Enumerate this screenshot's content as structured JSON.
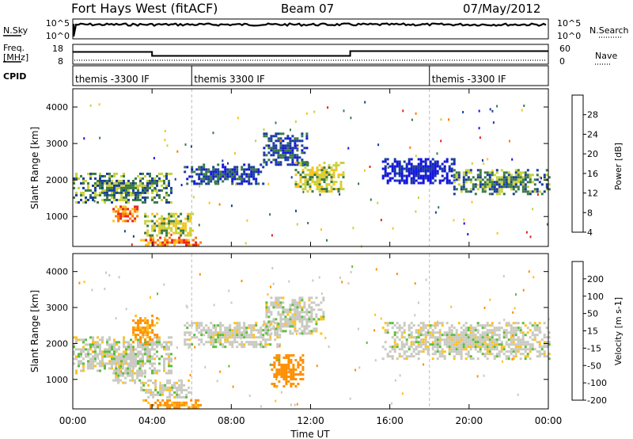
{
  "header": {
    "station": "Fort Hays West (fitACF)",
    "beam": "Beam 07",
    "date": "07/May/2012"
  },
  "noise_panel": {
    "left_label": "N.Sky",
    "right_label": "N.Search",
    "left_ticks": [
      "10^5",
      "10^0"
    ],
    "right_ticks": [
      "10^5",
      "10^0"
    ]
  },
  "freq_panel": {
    "left_label_1": "Freq.",
    "left_label_2": "[MHz]",
    "right_label": "Nave",
    "left_ticks": [
      "18",
      "8"
    ],
    "right_ticks": [
      "60",
      "0"
    ],
    "freq_steps": [
      {
        "t_start": 0.0,
        "t_end": 4.0,
        "mhz": 14.2
      },
      {
        "t_start": 4.0,
        "t_end": 14.0,
        "mhz": 12.2
      },
      {
        "t_start": 14.0,
        "t_end": 24.0,
        "mhz": 14.6
      }
    ],
    "nave_level": 12
  },
  "cpid": {
    "label": "CPID",
    "segments": [
      {
        "name": "themis -3300 IF",
        "t_start": 0.0
      },
      {
        "name": "themis 3300 IF",
        "t_start": 6.0
      },
      {
        "name": "themis -3300 IF",
        "t_start": 18.0
      }
    ]
  },
  "chart_data": [
    {
      "type": "heatmap",
      "quantity": "Power",
      "ylabel": "Slant Range [km]",
      "y_ticks": [
        "1000",
        "2000",
        "3000",
        "4000"
      ],
      "ylim": [
        180,
        4500
      ],
      "xlim": [
        0,
        24
      ],
      "colorbar": {
        "label": "Power [dB]",
        "tick_labels": [
          "28",
          "24",
          "20",
          "16",
          "12",
          "8",
          "4"
        ],
        "colors": [
          "#e8231f",
          "#ff7a00",
          "#ffc21a",
          "#c8d23c",
          "#3a7a46",
          "#1a3d9e",
          "#1515e0"
        ]
      },
      "features": [
        {
          "t": [
            0.0,
            5.0
          ],
          "range_km": [
            1400,
            2200
          ],
          "level_db": 12
        },
        {
          "t": [
            2.0,
            3.2
          ],
          "range_km": [
            850,
            1300
          ],
          "level_db": 24
        },
        {
          "t": [
            3.6,
            6.0
          ],
          "range_km": [
            500,
            1100
          ],
          "level_db": 16
        },
        {
          "t": [
            3.4,
            6.4
          ],
          "range_km": [
            200,
            450
          ],
          "level_db": 24
        },
        {
          "t": [
            5.6,
            9.6
          ],
          "range_km": [
            1900,
            2450
          ],
          "level_db": 8
        },
        {
          "t": [
            9.6,
            11.8
          ],
          "range_km": [
            2400,
            3300
          ],
          "level_db": 8
        },
        {
          "t": [
            11.2,
            13.6
          ],
          "range_km": [
            1700,
            2500
          ],
          "level_db": 16
        },
        {
          "t": [
            15.6,
            19.2
          ],
          "range_km": [
            1900,
            2600
          ],
          "level_db": 4
        },
        {
          "t": [
            19.2,
            24.0
          ],
          "range_km": [
            1600,
            2300
          ],
          "level_db": 12
        }
      ]
    },
    {
      "type": "heatmap",
      "quantity": "Velocity",
      "ylabel": "Slant Range [km]",
      "y_ticks": [
        "1000",
        "2000",
        "3000",
        "4000"
      ],
      "ylim": [
        180,
        4500
      ],
      "xlim": [
        0,
        24
      ],
      "colorbar": {
        "label": "Velocity [m s-1]",
        "tick_labels": [
          "200",
          "100",
          "50",
          "15",
          "-15",
          "-50",
          "-100",
          "-200"
        ],
        "colors": [
          "#1a2ea8",
          "#2f6f49",
          "#5cbd3a",
          "#c9c9c1",
          "#ffc21a",
          "#ff8f00",
          "#f34813",
          "#e3001b"
        ]
      },
      "features": [
        {
          "t": [
            0.0,
            5.0
          ],
          "range_km": [
            1200,
            2200
          ],
          "velocity": 0
        },
        {
          "t": [
            2.0,
            3.6
          ],
          "range_km": [
            900,
            1400
          ],
          "velocity": 0
        },
        {
          "t": [
            3.0,
            4.2
          ],
          "range_km": [
            2000,
            2800
          ],
          "velocity": -60
        },
        {
          "t": [
            3.4,
            6.0
          ],
          "range_km": [
            500,
            1000
          ],
          "velocity": 0
        },
        {
          "t": [
            3.4,
            6.4
          ],
          "range_km": [
            200,
            450
          ],
          "velocity": -60
        },
        {
          "t": [
            5.6,
            10.4
          ],
          "range_km": [
            1900,
            2600
          ],
          "velocity": 0
        },
        {
          "t": [
            9.6,
            12.6
          ],
          "range_km": [
            2300,
            3300
          ],
          "velocity": 0
        },
        {
          "t": [
            10.0,
            11.6
          ],
          "range_km": [
            800,
            1700
          ],
          "velocity": -80
        },
        {
          "t": [
            15.6,
            24.0
          ],
          "range_km": [
            1600,
            2600
          ],
          "velocity": 0
        }
      ]
    }
  ],
  "x_axis": {
    "ticks": [
      "00:00",
      "04:00",
      "08:00",
      "12:00",
      "16:00",
      "20:00",
      "00:00"
    ],
    "label": "Time UT"
  }
}
